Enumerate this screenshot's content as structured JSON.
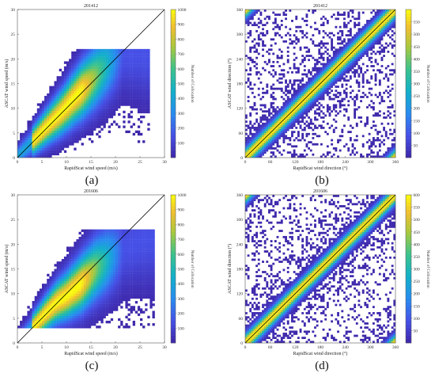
{
  "captions": {
    "a": "(a)",
    "b": "(b)",
    "c": "(c)",
    "d": "(d)"
  },
  "colors": {
    "low": "#3e26a8",
    "mid": "#12b0c9",
    "high": "#f9fb0e",
    "identity_line": "#000000"
  },
  "chart_data": [
    {
      "id": "a",
      "type": "heatmap",
      "title": "201412",
      "xlabel": "RapidScat wind speed (m/s)",
      "ylabel": "ASCAT wind speed (m/s)",
      "xlim": [
        0,
        30
      ],
      "ylim": [
        0,
        30
      ],
      "xticks": [
        0,
        5,
        10,
        15,
        20,
        25,
        30
      ],
      "yticks": [
        0,
        5,
        10,
        15,
        20,
        25,
        30
      ],
      "colorbar": {
        "label": "Number of Collocation",
        "range": [
          0,
          1000
        ],
        "ticks": [
          100,
          200,
          300,
          400,
          500,
          600,
          700,
          800,
          900,
          1000
        ]
      },
      "identity_line": true,
      "density_ridge": [
        [
          0.5,
          0.8
        ],
        [
          3,
          3.2
        ],
        [
          6,
          6.3
        ],
        [
          9,
          9.2
        ],
        [
          12,
          12.5
        ],
        [
          15,
          15.5
        ],
        [
          18,
          18.5
        ],
        [
          21,
          21
        ],
        [
          23,
          21
        ]
      ],
      "spread_extent": {
        "x": [
          0,
          27
        ],
        "y": [
          0,
          22
        ]
      }
    },
    {
      "id": "b",
      "type": "heatmap",
      "title": "201412",
      "xlabel": "RapidScat  wind direction (°)",
      "ylabel": "ASCAT wind direction (°)",
      "xlim": [
        0,
        360
      ],
      "ylim": [
        0,
        360
      ],
      "xticks": [
        0,
        60,
        120,
        180,
        240,
        300,
        360
      ],
      "yticks": [
        0,
        60,
        120,
        180,
        240,
        300,
        360
      ],
      "colorbar": {
        "label": "Number of Collocation",
        "range": [
          0,
          600
        ],
        "ticks": [
          50,
          100,
          150,
          200,
          250,
          300,
          350,
          400,
          450,
          500,
          550
        ]
      },
      "identity_line": true,
      "density_ridge": [
        [
          0,
          0
        ],
        [
          60,
          60
        ],
        [
          120,
          120
        ],
        [
          180,
          180
        ],
        [
          240,
          240
        ],
        [
          300,
          300
        ],
        [
          360,
          360
        ]
      ]
    },
    {
      "id": "c",
      "type": "heatmap",
      "title": "201606",
      "xlabel": "RapidScat wind speed (m/s)",
      "ylabel": "ASCAT wind speed (m/s)",
      "xlim": [
        0,
        30
      ],
      "ylim": [
        0,
        30
      ],
      "xticks": [
        0,
        5,
        10,
        15,
        20,
        25,
        30
      ],
      "yticks": [
        0,
        5,
        10,
        15,
        20,
        25,
        30
      ],
      "colorbar": {
        "label": "Number of Collocation",
        "range": [
          0,
          1000
        ],
        "ticks": [
          100,
          200,
          300,
          400,
          500,
          600,
          700,
          800,
          900,
          1000
        ]
      },
      "identity_line": true,
      "density_ridge": [
        [
          3,
          3
        ],
        [
          6,
          6.2
        ],
        [
          8,
          8.2
        ],
        [
          10,
          9.5
        ],
        [
          13,
          12
        ],
        [
          16,
          15
        ],
        [
          20,
          18
        ],
        [
          25,
          20.5
        ],
        [
          27,
          21
        ]
      ],
      "spread_extent": {
        "x": [
          0,
          28
        ],
        "y": [
          3,
          23
        ]
      }
    },
    {
      "id": "d",
      "type": "heatmap",
      "title": "201606",
      "xlabel": "RapidScat  wind direction (°)",
      "ylabel": "ASCAT wind direction (°)",
      "xlim": [
        0,
        360
      ],
      "ylim": [
        0,
        360
      ],
      "xticks": [
        0,
        60,
        120,
        180,
        240,
        300,
        360
      ],
      "yticks": [
        0,
        60,
        120,
        180,
        240,
        300,
        360
      ],
      "colorbar": {
        "label": "Number of Collocation",
        "range": [
          0,
          600
        ],
        "ticks": [
          50,
          100,
          150,
          200,
          250,
          300,
          350,
          400,
          450,
          500,
          550,
          600
        ]
      },
      "identity_line": true,
      "density_ridge": [
        [
          0,
          0
        ],
        [
          60,
          60
        ],
        [
          120,
          120
        ],
        [
          180,
          180
        ],
        [
          240,
          240
        ],
        [
          300,
          300
        ],
        [
          360,
          360
        ]
      ]
    }
  ]
}
